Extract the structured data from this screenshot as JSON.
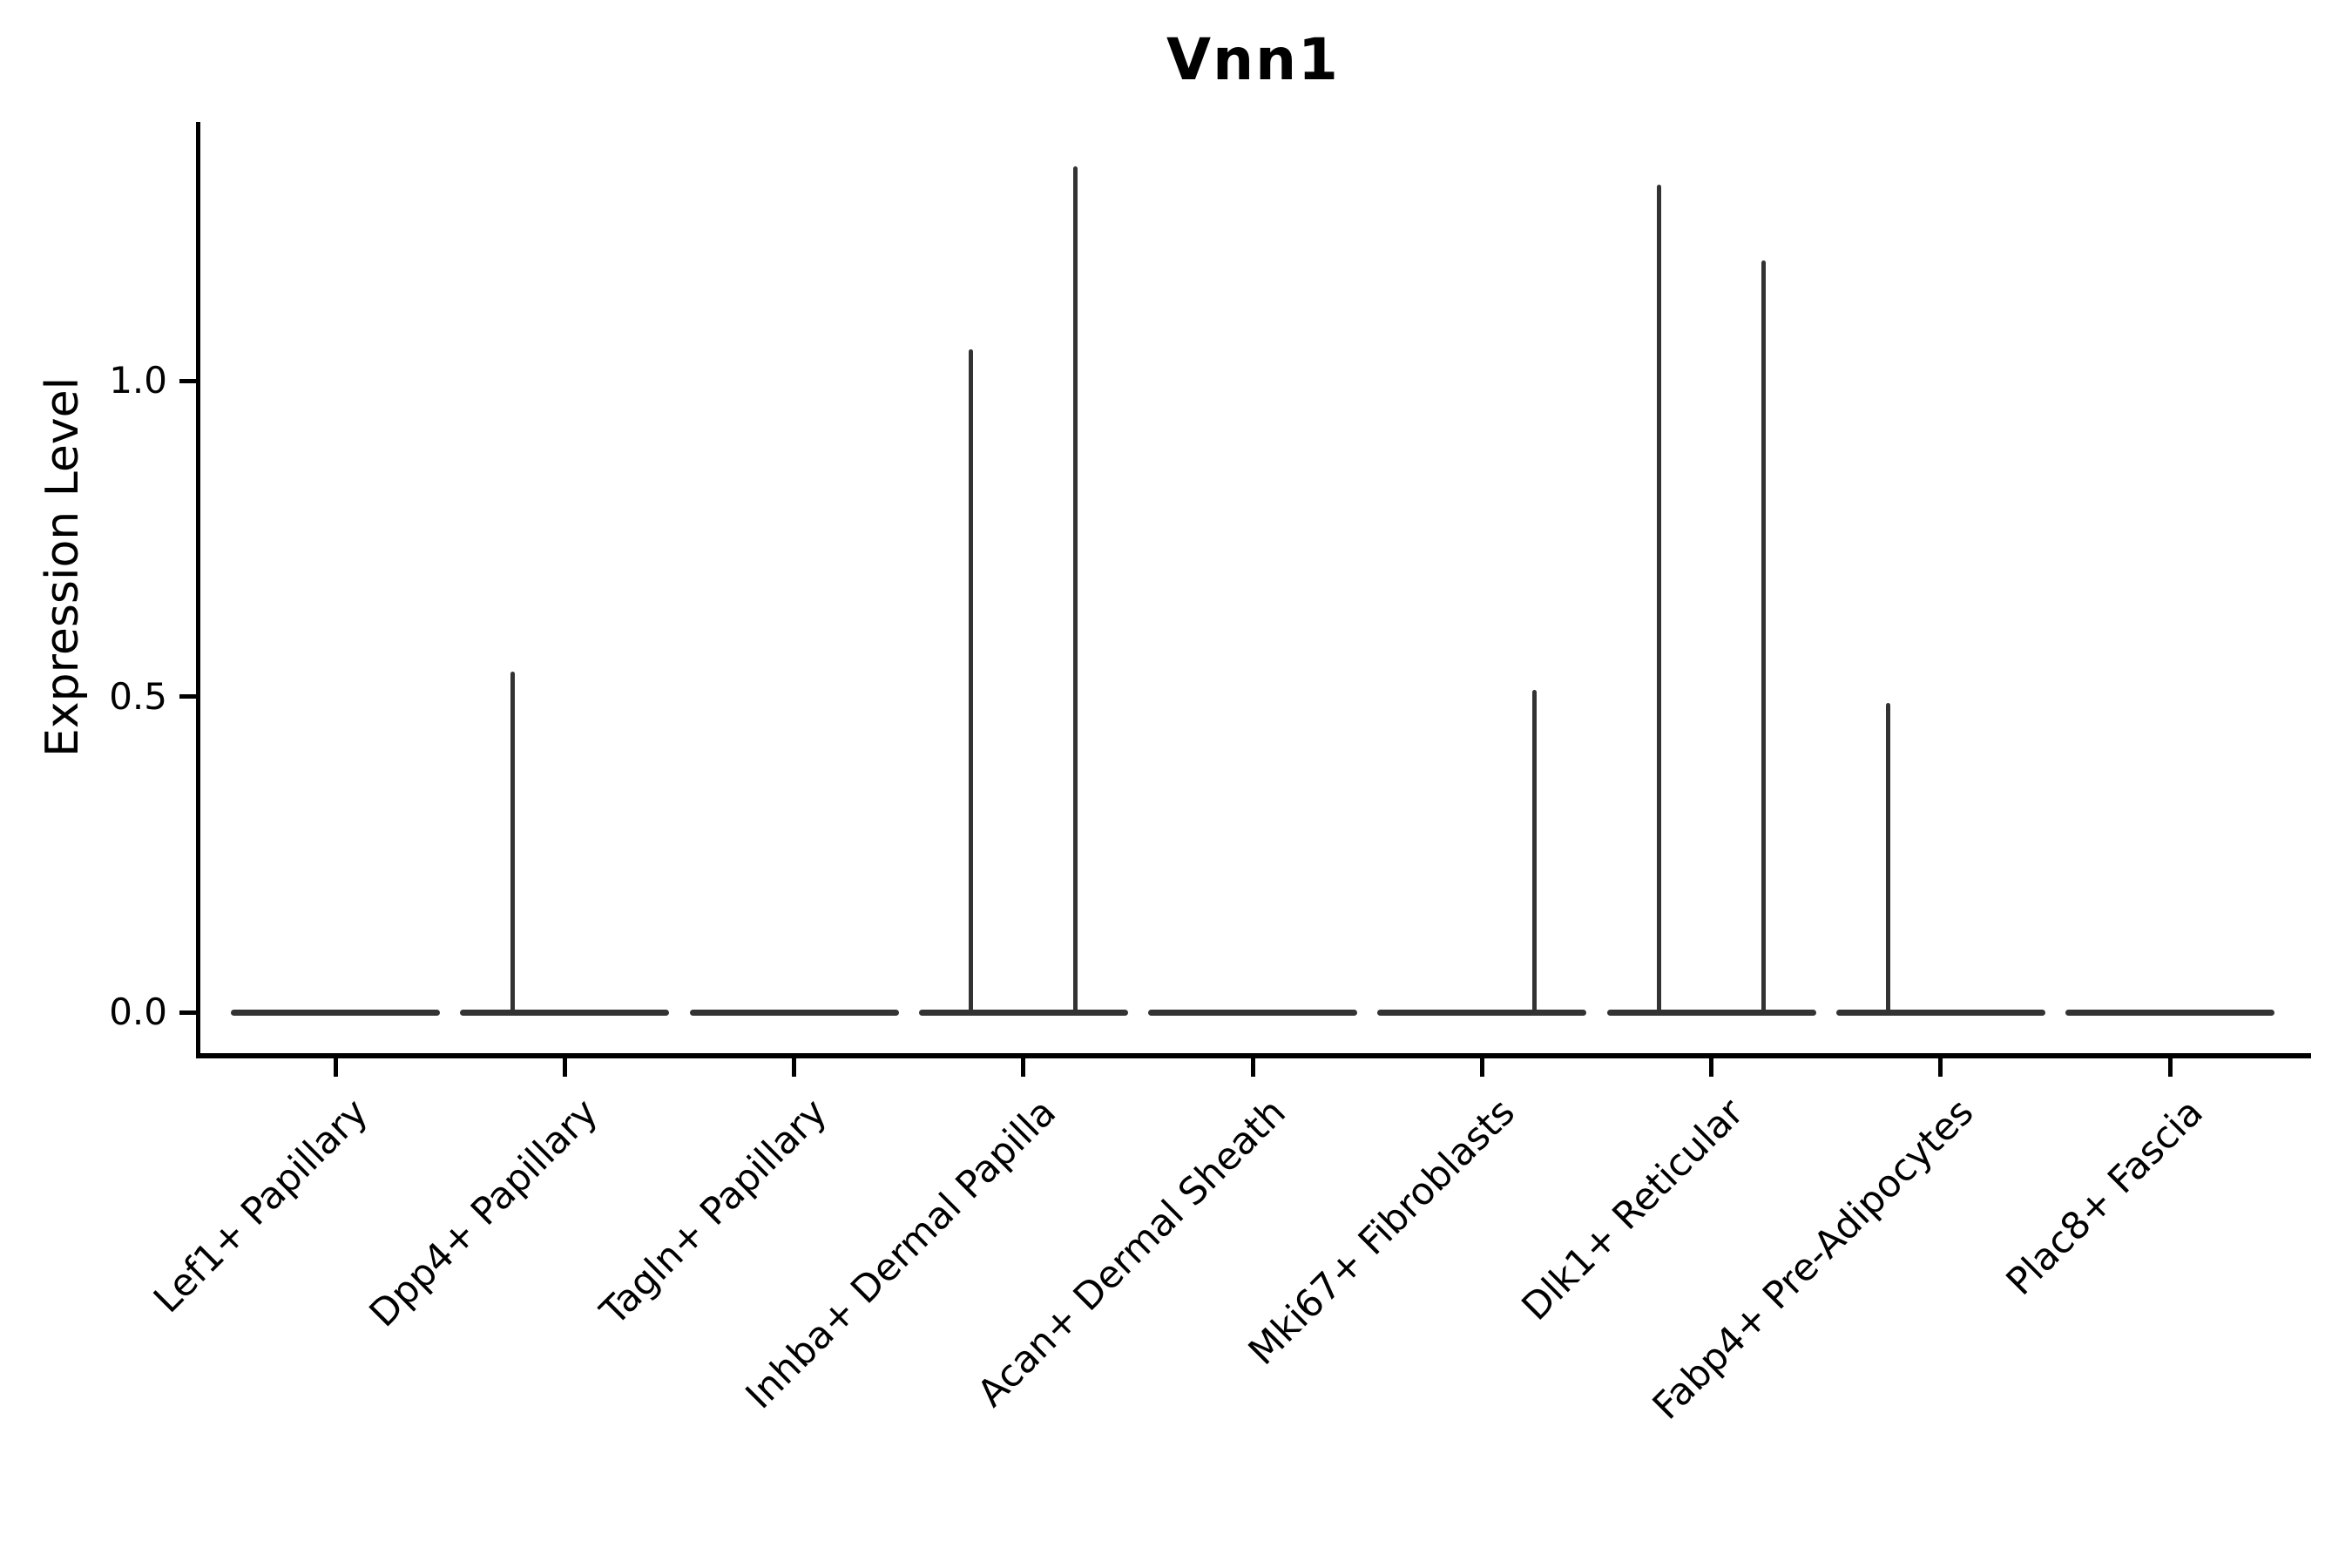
{
  "chart_data": {
    "type": "violin",
    "title": "Vnn1",
    "ylabel": "Expression Level",
    "xlabel": "",
    "ylim": [
      0.0,
      1.41
    ],
    "grid": false,
    "legend_position": "none",
    "yticks": [
      {
        "label": "0.0",
        "value": 0.0
      },
      {
        "label": "0.5",
        "value": 0.5
      },
      {
        "label": "1.0",
        "value": 1.0
      }
    ],
    "categories": [
      "Lef1+ Papillary",
      "Dpp4+ Papillary",
      "Tagln+ Papillary",
      "Inhba+ Dermal Papilla",
      "Acan+ Dermal Sheath",
      "Mki67+ Fibroblasts",
      "Dlk1+ Reticular",
      "Fabp4+ Pre-Adipocytes",
      "Plac8+ Fascia"
    ],
    "violins": [
      {
        "category": "Lef1+ Papillary",
        "baseline_value": 0.0,
        "spikes": []
      },
      {
        "category": "Dpp4+ Papillary",
        "baseline_value": 0.0,
        "spikes": [
          {
            "position": "left",
            "max_value": 0.54
          }
        ]
      },
      {
        "category": "Tagln+ Papillary",
        "baseline_value": 0.0,
        "spikes": []
      },
      {
        "category": "Inhba+ Dermal Papilla",
        "baseline_value": 0.0,
        "spikes": [
          {
            "position": "left",
            "max_value": 1.05
          },
          {
            "position": "right",
            "max_value": 1.34
          }
        ]
      },
      {
        "category": "Acan+ Dermal Sheath",
        "baseline_value": 0.0,
        "spikes": []
      },
      {
        "category": "Mki67+ Fibroblasts",
        "baseline_value": 0.0,
        "spikes": [
          {
            "position": "right",
            "max_value": 0.51
          }
        ]
      },
      {
        "category": "Dlk1+ Reticular",
        "baseline_value": 0.0,
        "spikes": [
          {
            "position": "left",
            "max_value": 1.31
          },
          {
            "position": "right",
            "max_value": 1.19
          }
        ]
      },
      {
        "category": "Fabp4+ Pre-Adipocytes",
        "baseline_value": 0.0,
        "spikes": [
          {
            "position": "left",
            "max_value": 0.49
          }
        ]
      },
      {
        "category": "Plac8+ Fascia",
        "baseline_value": 0.0,
        "spikes": []
      }
    ],
    "colors": {
      "violin": "#333333",
      "axis": "#000000",
      "text": "#000000",
      "background": "#ffffff"
    }
  }
}
